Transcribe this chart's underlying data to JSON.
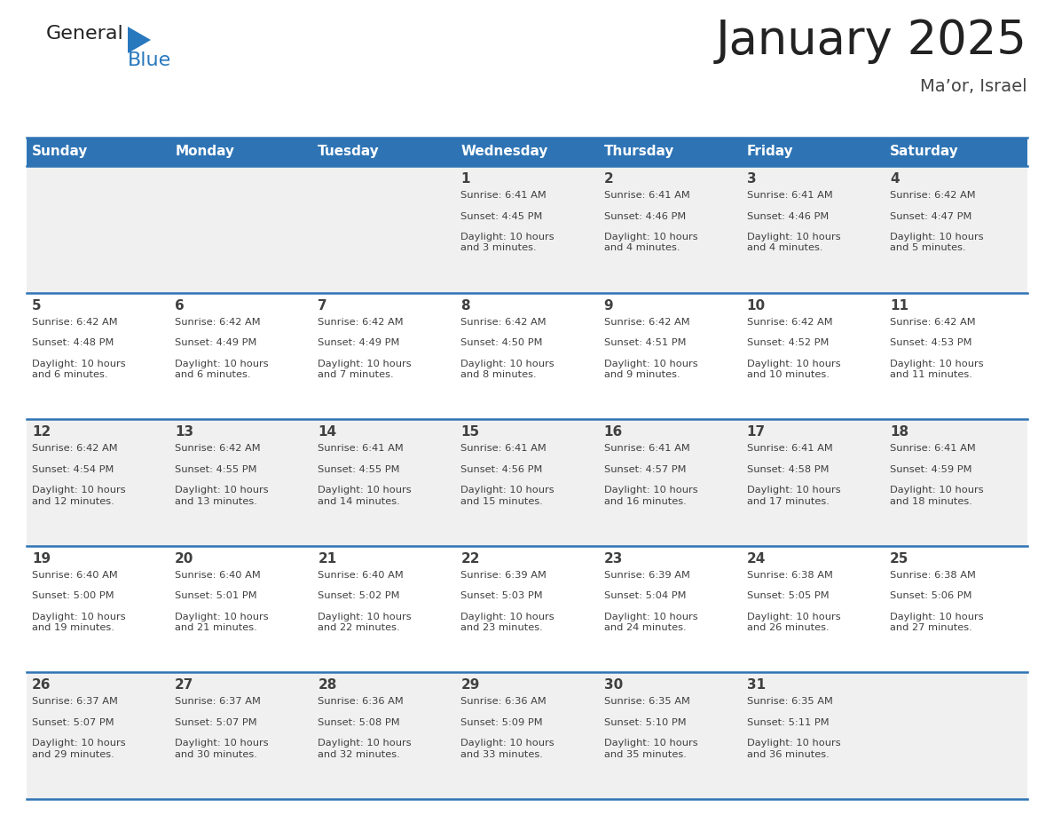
{
  "title": "January 2025",
  "subtitle": "Ma’or, Israel",
  "days_of_week": [
    "Sunday",
    "Monday",
    "Tuesday",
    "Wednesday",
    "Thursday",
    "Friday",
    "Saturday"
  ],
  "header_bg": "#2E74B5",
  "header_text_color": "#FFFFFF",
  "cell_bg_even": "#F0F0F0",
  "cell_bg_odd": "#FFFFFF",
  "border_color": "#2E74B5",
  "text_color": "#404040",
  "logo_general_color": "#222222",
  "logo_blue_color": "#2878BE",
  "logo_triangle_color": "#2878BE",
  "calendar_data": [
    [
      {
        "day": "",
        "sunrise": "",
        "sunset": "",
        "daylight": ""
      },
      {
        "day": "",
        "sunrise": "",
        "sunset": "",
        "daylight": ""
      },
      {
        "day": "",
        "sunrise": "",
        "sunset": "",
        "daylight": ""
      },
      {
        "day": "1",
        "sunrise": "6:41 AM",
        "sunset": "4:45 PM",
        "daylight": "10 hours\nand 3 minutes."
      },
      {
        "day": "2",
        "sunrise": "6:41 AM",
        "sunset": "4:46 PM",
        "daylight": "10 hours\nand 4 minutes."
      },
      {
        "day": "3",
        "sunrise": "6:41 AM",
        "sunset": "4:46 PM",
        "daylight": "10 hours\nand 4 minutes."
      },
      {
        "day": "4",
        "sunrise": "6:42 AM",
        "sunset": "4:47 PM",
        "daylight": "10 hours\nand 5 minutes."
      }
    ],
    [
      {
        "day": "5",
        "sunrise": "6:42 AM",
        "sunset": "4:48 PM",
        "daylight": "10 hours\nand 6 minutes."
      },
      {
        "day": "6",
        "sunrise": "6:42 AM",
        "sunset": "4:49 PM",
        "daylight": "10 hours\nand 6 minutes."
      },
      {
        "day": "7",
        "sunrise": "6:42 AM",
        "sunset": "4:49 PM",
        "daylight": "10 hours\nand 7 minutes."
      },
      {
        "day": "8",
        "sunrise": "6:42 AM",
        "sunset": "4:50 PM",
        "daylight": "10 hours\nand 8 minutes."
      },
      {
        "day": "9",
        "sunrise": "6:42 AM",
        "sunset": "4:51 PM",
        "daylight": "10 hours\nand 9 minutes."
      },
      {
        "day": "10",
        "sunrise": "6:42 AM",
        "sunset": "4:52 PM",
        "daylight": "10 hours\nand 10 minutes."
      },
      {
        "day": "11",
        "sunrise": "6:42 AM",
        "sunset": "4:53 PM",
        "daylight": "10 hours\nand 11 minutes."
      }
    ],
    [
      {
        "day": "12",
        "sunrise": "6:42 AM",
        "sunset": "4:54 PM",
        "daylight": "10 hours\nand 12 minutes."
      },
      {
        "day": "13",
        "sunrise": "6:42 AM",
        "sunset": "4:55 PM",
        "daylight": "10 hours\nand 13 minutes."
      },
      {
        "day": "14",
        "sunrise": "6:41 AM",
        "sunset": "4:55 PM",
        "daylight": "10 hours\nand 14 minutes."
      },
      {
        "day": "15",
        "sunrise": "6:41 AM",
        "sunset": "4:56 PM",
        "daylight": "10 hours\nand 15 minutes."
      },
      {
        "day": "16",
        "sunrise": "6:41 AM",
        "sunset": "4:57 PM",
        "daylight": "10 hours\nand 16 minutes."
      },
      {
        "day": "17",
        "sunrise": "6:41 AM",
        "sunset": "4:58 PM",
        "daylight": "10 hours\nand 17 minutes."
      },
      {
        "day": "18",
        "sunrise": "6:41 AM",
        "sunset": "4:59 PM",
        "daylight": "10 hours\nand 18 minutes."
      }
    ],
    [
      {
        "day": "19",
        "sunrise": "6:40 AM",
        "sunset": "5:00 PM",
        "daylight": "10 hours\nand 19 minutes."
      },
      {
        "day": "20",
        "sunrise": "6:40 AM",
        "sunset": "5:01 PM",
        "daylight": "10 hours\nand 21 minutes."
      },
      {
        "day": "21",
        "sunrise": "6:40 AM",
        "sunset": "5:02 PM",
        "daylight": "10 hours\nand 22 minutes."
      },
      {
        "day": "22",
        "sunrise": "6:39 AM",
        "sunset": "5:03 PM",
        "daylight": "10 hours\nand 23 minutes."
      },
      {
        "day": "23",
        "sunrise": "6:39 AM",
        "sunset": "5:04 PM",
        "daylight": "10 hours\nand 24 minutes."
      },
      {
        "day": "24",
        "sunrise": "6:38 AM",
        "sunset": "5:05 PM",
        "daylight": "10 hours\nand 26 minutes."
      },
      {
        "day": "25",
        "sunrise": "6:38 AM",
        "sunset": "5:06 PM",
        "daylight": "10 hours\nand 27 minutes."
      }
    ],
    [
      {
        "day": "26",
        "sunrise": "6:37 AM",
        "sunset": "5:07 PM",
        "daylight": "10 hours\nand 29 minutes."
      },
      {
        "day": "27",
        "sunrise": "6:37 AM",
        "sunset": "5:07 PM",
        "daylight": "10 hours\nand 30 minutes."
      },
      {
        "day": "28",
        "sunrise": "6:36 AM",
        "sunset": "5:08 PM",
        "daylight": "10 hours\nand 32 minutes."
      },
      {
        "day": "29",
        "sunrise": "6:36 AM",
        "sunset": "5:09 PM",
        "daylight": "10 hours\nand 33 minutes."
      },
      {
        "day": "30",
        "sunrise": "6:35 AM",
        "sunset": "5:10 PM",
        "daylight": "10 hours\nand 35 minutes."
      },
      {
        "day": "31",
        "sunrise": "6:35 AM",
        "sunset": "5:11 PM",
        "daylight": "10 hours\nand 36 minutes."
      },
      {
        "day": "",
        "sunrise": "",
        "sunset": "",
        "daylight": ""
      }
    ]
  ]
}
